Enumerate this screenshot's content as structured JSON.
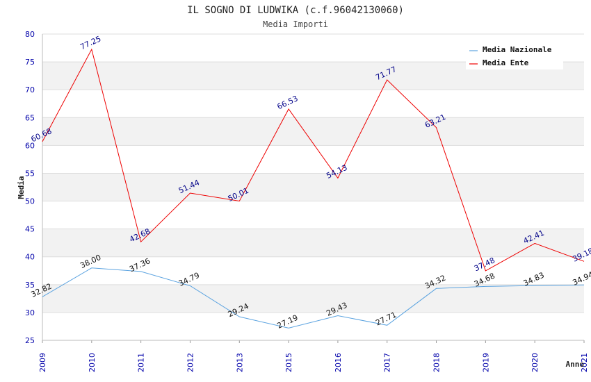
{
  "chart_data": {
    "type": "line",
    "title": "IL SOGNO DI LUDWIKA (c.f.96042130060)",
    "subtitle": "Media Importi",
    "xlabel": "Anno",
    "ylabel": "Media",
    "ylim": [
      25,
      80
    ],
    "yticks": [
      25,
      30,
      35,
      40,
      45,
      50,
      55,
      60,
      65,
      70,
      75,
      80
    ],
    "categories": [
      "2009",
      "2010",
      "2011",
      "2012",
      "2013",
      "2015",
      "2016",
      "2017",
      "2018",
      "2019",
      "2020",
      "2021"
    ],
    "grid": "horizontal bands",
    "legend_position": "top-right",
    "series": [
      {
        "name": "Media Nazionale",
        "color": "#5ba3e0",
        "values": [
          32.82,
          38.0,
          37.36,
          34.79,
          29.24,
          27.19,
          29.43,
          27.71,
          34.32,
          34.68,
          34.83,
          34.94
        ],
        "labels": [
          "32.82",
          "38.00",
          "37.36",
          "34.79",
          "29.24",
          "27.19",
          "29.43",
          "27.71",
          "34.32",
          "34.68",
          "34.83",
          "34.94"
        ]
      },
      {
        "name": "Media Ente",
        "color": "#ee0000",
        "values": [
          60.68,
          77.25,
          42.68,
          51.44,
          50.01,
          66.53,
          54.13,
          71.77,
          63.21,
          37.48,
          42.41,
          39.18
        ],
        "labels": [
          "60.68",
          "77.25",
          "42.68",
          "51.44",
          "50.01",
          "66.53",
          "54.13",
          "71.77",
          "63.21",
          "37.48",
          "42.41",
          "39.18"
        ]
      }
    ]
  }
}
